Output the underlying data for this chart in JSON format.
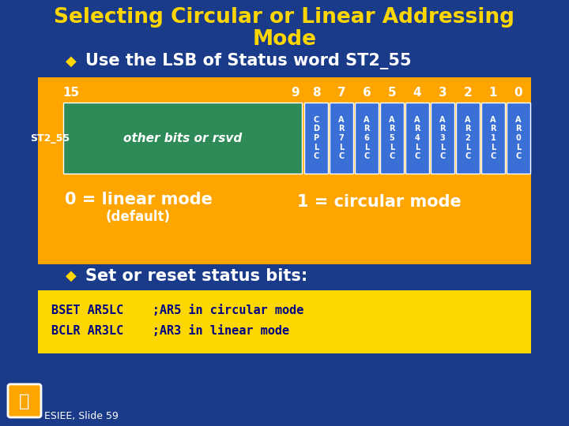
{
  "title_line1": "Selecting Circular or Linear Addressing",
  "title_line2": "Mode",
  "title_color": "#FFD700",
  "bg_color": "#1a3a8a",
  "bullet1": "Use the LSB of Status word ST2_55",
  "bullet2": "Set or reset status bits:",
  "bullet_color": "#FFD700",
  "bullet_text_color": "#FFFFFF",
  "orange_box_color": "#FFA500",
  "green_box_color": "#2e8b57",
  "blue_cell_color": "#3a6fd8",
  "row_label": "ST2_55",
  "other_bits_text": "other bits or rsvd",
  "cell_labels": [
    "C\nD\nP\nL\nC",
    "A\nR\n7\nL\nC",
    "A\nR\n6\nL\nC",
    "A\nR\n5\nL\nC",
    "A\nR\n4\nL\nC",
    "A\nR\n3\nL\nC",
    "A\nR\n2\nL\nC",
    "A\nR\n1\nL\nC",
    "A\nR\n0\nL\nC"
  ],
  "linear_mode_text": "0 = linear mode",
  "default_text": "(default)",
  "circular_mode_text": "1 = circular mode",
  "code_line1": "BSET AR5LC    ;AR5 in circular mode",
  "code_line2": "BCLR AR3LC    ;AR3 in linear mode",
  "code_bg": "#FFD700",
  "code_text_color": "#000080",
  "footer_text": "ESIEE, Slide 59",
  "footer_color": "#FFFFFF"
}
